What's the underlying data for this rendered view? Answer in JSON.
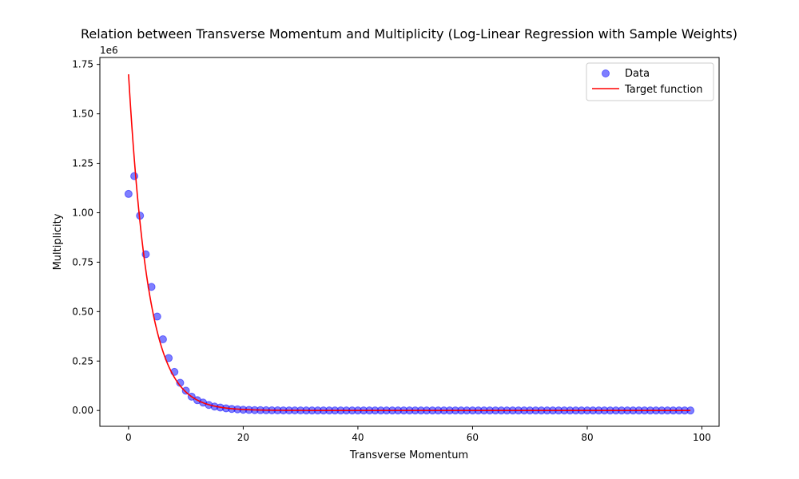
{
  "chart_data": {
    "type": "scatter",
    "title": "Relation between Transverse Momentum and Multiplicity (Log-Linear Regression with Sample Weights)",
    "xlabel": "Transverse Momentum",
    "ylabel": "Multiplicity",
    "y_offset_label": "1e6",
    "xlim": [
      -5,
      103
    ],
    "ylim": [
      -0.08,
      1.785
    ],
    "x_ticks": [
      0,
      20,
      40,
      60,
      80,
      100
    ],
    "x_tick_labels": [
      "0",
      "20",
      "40",
      "60",
      "80",
      "100"
    ],
    "y_ticks": [
      0,
      0.25,
      0.5,
      0.75,
      1.0,
      1.25,
      1.5,
      1.75
    ],
    "y_tick_labels": [
      "0.00",
      "0.25",
      "0.50",
      "0.75",
      "1.00",
      "1.25",
      "1.50",
      "1.75"
    ],
    "grid": false,
    "legend_position": "top-right",
    "series": [
      {
        "name": "Data",
        "kind": "scatter",
        "color": "#0000ff",
        "x": [
          0,
          1,
          2,
          3,
          4,
          5,
          6,
          7,
          8,
          9,
          10,
          11,
          12,
          13,
          14,
          15,
          16,
          17,
          18,
          19,
          20,
          21,
          22,
          23,
          24,
          25,
          26,
          27,
          28,
          29,
          30,
          31,
          32,
          33,
          34,
          35,
          36,
          37,
          38,
          39,
          40,
          41,
          42,
          43,
          44,
          45,
          46,
          47,
          48,
          49,
          50,
          51,
          52,
          53,
          54,
          55,
          56,
          57,
          58,
          59,
          60,
          61,
          62,
          63,
          64,
          65,
          66,
          67,
          68,
          69,
          70,
          71,
          72,
          73,
          74,
          75,
          76,
          77,
          78,
          79,
          80,
          81,
          82,
          83,
          84,
          85,
          86,
          87,
          88,
          89,
          90,
          91,
          92,
          93,
          94,
          95,
          96,
          97,
          98
        ],
        "y": [
          1.095,
          1.185,
          0.985,
          0.79,
          0.625,
          0.475,
          0.36,
          0.265,
          0.195,
          0.14,
          0.1,
          0.07,
          0.052,
          0.04,
          0.028,
          0.02,
          0.015,
          0.011,
          0.008,
          0.006,
          0.004,
          0.003,
          0.002,
          0.0015,
          0.001,
          0.0008,
          0.0006,
          0.0004,
          0.0003,
          0.0002,
          0.0002,
          0.0001,
          0.0001,
          0.0001,
          0.0001,
          0,
          0,
          0,
          0,
          0,
          0,
          0,
          0,
          0,
          0,
          0,
          0,
          0,
          0,
          0,
          0,
          0,
          0,
          0,
          0,
          0,
          0,
          0,
          0,
          0,
          0,
          0,
          0,
          0,
          0,
          0,
          0,
          0,
          0,
          0,
          0,
          0,
          0,
          0,
          0,
          0,
          0,
          0,
          0,
          0,
          0,
          0,
          0,
          0,
          0,
          0,
          0,
          0,
          0,
          0,
          0,
          0,
          0,
          0,
          0,
          0,
          0,
          0,
          0
        ]
      },
      {
        "name": "Target function",
        "kind": "line",
        "color": "#ff0000",
        "amplitude": 1.7,
        "decay_rate": 0.29
      }
    ]
  }
}
